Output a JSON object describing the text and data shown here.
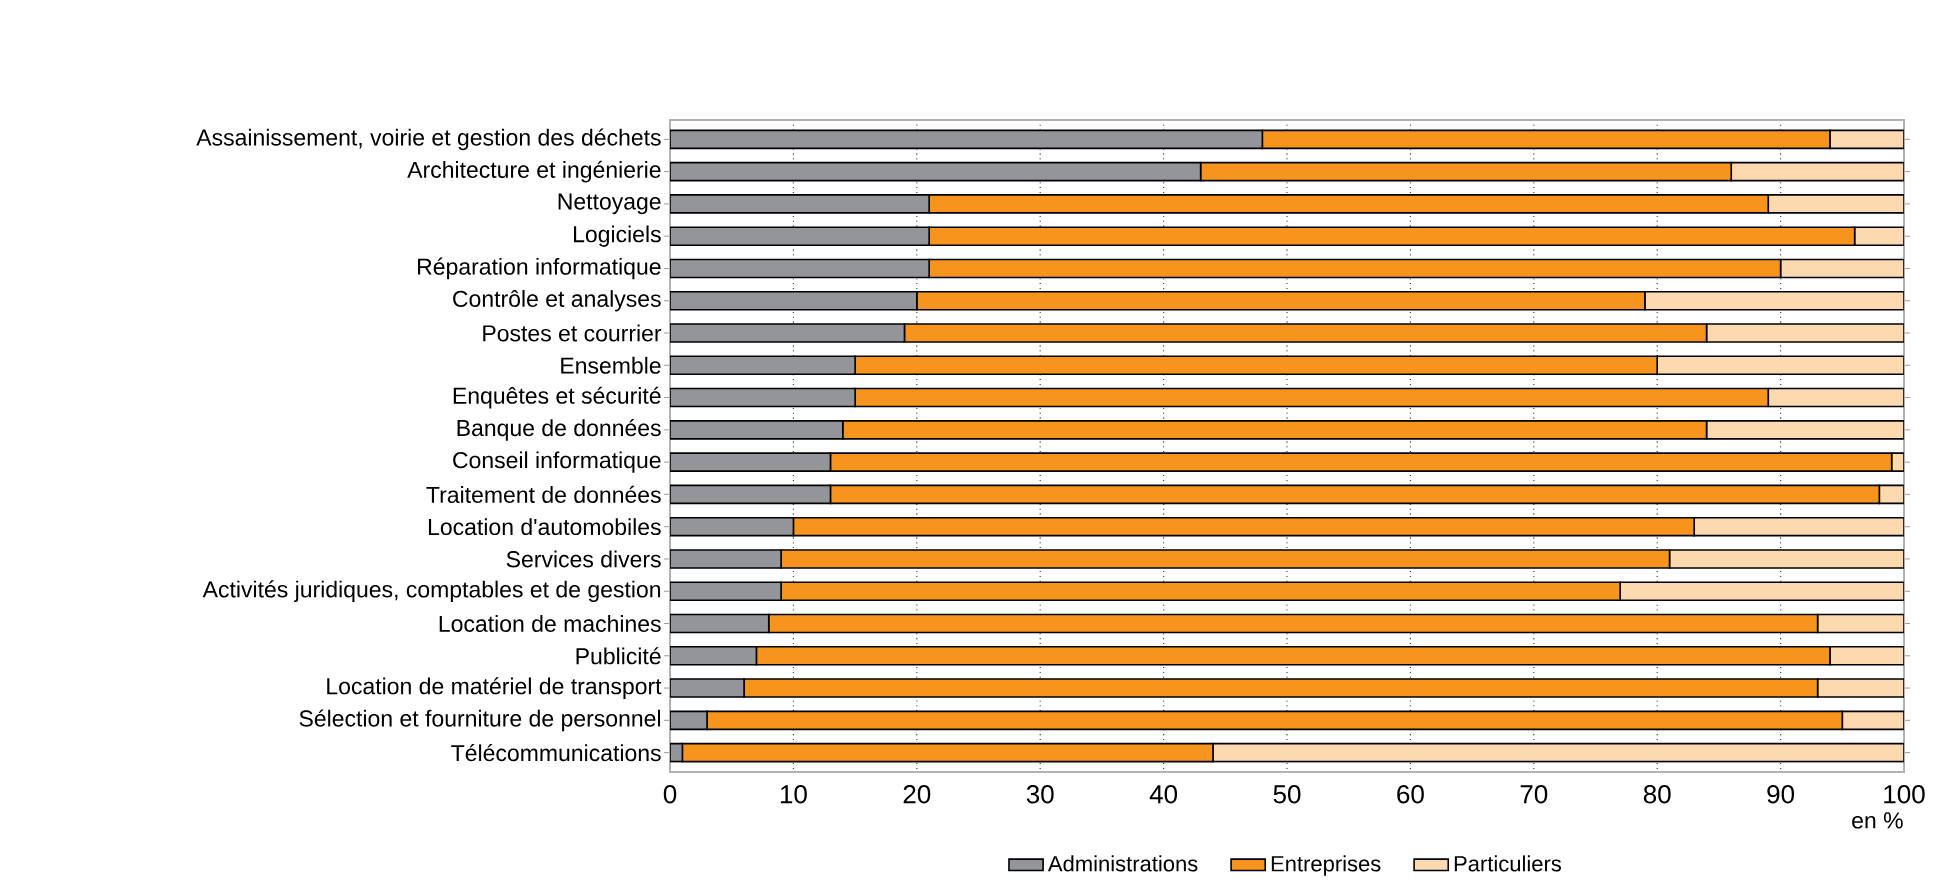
{
  "chart_data": {
    "type": "bar",
    "orientation": "horizontal",
    "stacked": true,
    "categories": [
      "Assainissement, voirie et gestion des déchets",
      "Architecture et ingénierie",
      "Nettoyage",
      "Logiciels",
      "Réparation informatique",
      "Contrôle et analyses",
      "Postes et courrier",
      "Ensemble",
      "Enquêtes et sécurité",
      "Banque de données",
      "Conseil informatique",
      "Traitement de données",
      "Location d'automobiles",
      "Services divers",
      "Activités juridiques, comptables et de gestion",
      "Location de machines",
      "Publicité",
      "Location de matériel de transport",
      "Sélection et fourniture de personnel",
      "Télécommunications"
    ],
    "series": [
      {
        "name": "Administrations",
        "color": "#939598",
        "values": [
          48,
          43,
          21,
          21,
          21,
          20,
          19,
          15,
          15,
          14,
          13,
          13,
          10,
          9,
          9,
          8,
          7,
          6,
          3,
          1
        ]
      },
      {
        "name": "Entreprises",
        "color": "#f7941d",
        "values": [
          46,
          43,
          68,
          75,
          69,
          59,
          65,
          65,
          74,
          70,
          86,
          85,
          73,
          72,
          68,
          85,
          87,
          87,
          92,
          43
        ]
      },
      {
        "name": "Particuliers",
        "color": "#fdd9b0",
        "values": [
          6,
          14,
          11,
          4,
          10,
          21,
          16,
          20,
          11,
          16,
          1,
          2,
          17,
          19,
          23,
          7,
          6,
          7,
          5,
          56
        ]
      }
    ],
    "xlabel": "en %",
    "xlim": [
      0,
      100
    ],
    "xticks": [
      0,
      10,
      20,
      30,
      40,
      50,
      60,
      70,
      80,
      90,
      100
    ],
    "grid": "x",
    "legend": "bottom"
  }
}
